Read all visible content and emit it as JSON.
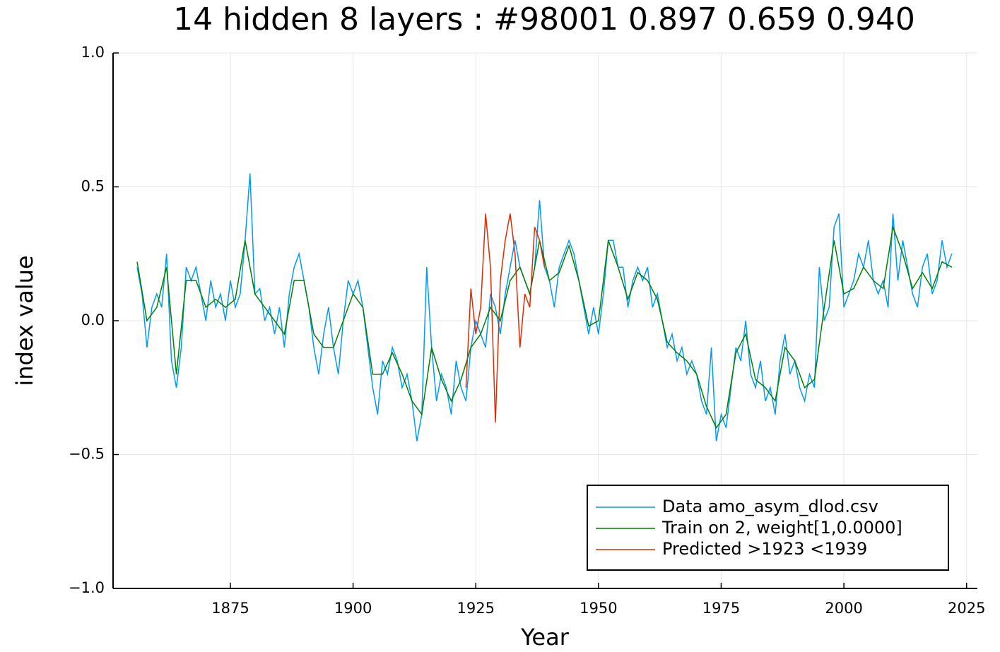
{
  "chart_data": {
    "type": "line",
    "title": "14 hidden 8 layers : #98001 0.897 0.659 0.940",
    "xlabel": "Year",
    "ylabel": "index value",
    "xlim": [
      1851.1,
      2027.2
    ],
    "ylim": [
      -1,
      1
    ],
    "xticks": [
      1875,
      1900,
      1925,
      1950,
      1975,
      2000,
      2025
    ],
    "yticks": [
      {
        "value": -1,
        "label": "−1.0"
      },
      {
        "value": -0.5,
        "label": "−0.5"
      },
      {
        "value": 0,
        "label": "0.0"
      },
      {
        "value": 0.5,
        "label": "0.5"
      },
      {
        "value": 1,
        "label": "1.0"
      }
    ],
    "grid": true,
    "legend": "bottom-right",
    "series": [
      {
        "name": "Data amo_asym_dlod.csv",
        "color": "#009af9",
        "x": [
          1856,
          1857,
          1858,
          1859,
          1860,
          1861,
          1862,
          1863,
          1864,
          1865,
          1866,
          1867,
          1868,
          1869,
          1870,
          1871,
          1872,
          1873,
          1874,
          1875,
          1876,
          1877,
          1878,
          1879,
          1880,
          1881,
          1882,
          1883,
          1884,
          1885,
          1886,
          1887,
          1888,
          1889,
          1890,
          1891,
          1892,
          1893,
          1894,
          1895,
          1896,
          1897,
          1898,
          1899,
          1900,
          1901,
          1902,
          1903,
          1904,
          1905,
          1906,
          1907,
          1908,
          1909,
          1910,
          1911,
          1912,
          1913,
          1914,
          1915,
          1916,
          1917,
          1918,
          1919,
          1920,
          1921,
          1922,
          1923,
          1924,
          1925,
          1926,
          1927,
          1928,
          1929,
          1930,
          1931,
          1932,
          1933,
          1934,
          1935,
          1936,
          1937,
          1938,
          1939,
          1940,
          1941,
          1942,
          1943,
          1944,
          1945,
          1946,
          1947,
          1948,
          1949,
          1950,
          1951,
          1952,
          1953,
          1954,
          1955,
          1956,
          1957,
          1958,
          1959,
          1960,
          1961,
          1962,
          1963,
          1964,
          1965,
          1966,
          1967,
          1968,
          1969,
          1970,
          1971,
          1972,
          1973,
          1974,
          1975,
          1976,
          1977,
          1978,
          1979,
          1980,
          1981,
          1982,
          1983,
          1984,
          1985,
          1986,
          1987,
          1988,
          1989,
          1990,
          1991,
          1992,
          1993,
          1994,
          1995,
          1996,
          1997,
          1998,
          1999,
          2000,
          2001,
          2002,
          2003,
          2004,
          2005,
          2006,
          2007,
          2008,
          2009,
          2010,
          2011,
          2012,
          2013,
          2014,
          2015,
          2016,
          2017,
          2018,
          2019,
          2020,
          2021,
          2022
        ],
        "values": [
          0.2,
          0.1,
          -0.1,
          0.05,
          0.1,
          0.05,
          0.25,
          -0.15,
          -0.25,
          -0.1,
          0.2,
          0.15,
          0.2,
          0.1,
          0.0,
          0.15,
          0.05,
          0.1,
          0.0,
          0.15,
          0.05,
          0.1,
          0.3,
          0.55,
          0.1,
          0.12,
          0.0,
          0.05,
          -0.05,
          0.05,
          -0.1,
          0.1,
          0.2,
          0.25,
          0.15,
          0.05,
          -0.1,
          -0.2,
          -0.05,
          0.05,
          -0.1,
          -0.2,
          0.0,
          0.15,
          0.1,
          0.15,
          0.05,
          -0.1,
          -0.25,
          -0.35,
          -0.15,
          -0.2,
          -0.1,
          -0.15,
          -0.25,
          -0.2,
          -0.3,
          -0.45,
          -0.35,
          0.2,
          -0.1,
          -0.3,
          -0.2,
          -0.25,
          -0.35,
          -0.15,
          -0.25,
          -0.3,
          -0.1,
          0.0,
          -0.05,
          -0.1,
          0.1,
          0.05,
          -0.05,
          0.1,
          0.2,
          0.3,
          0.2,
          0.15,
          0.1,
          0.2,
          0.45,
          0.2,
          0.15,
          0.05,
          0.2,
          0.25,
          0.3,
          0.25,
          0.15,
          0.05,
          -0.05,
          0.05,
          -0.05,
          0.1,
          0.3,
          0.3,
          0.2,
          0.2,
          0.05,
          0.15,
          0.2,
          0.15,
          0.2,
          0.05,
          0.1,
          0.0,
          -0.1,
          -0.05,
          -0.15,
          -0.1,
          -0.2,
          -0.15,
          -0.2,
          -0.3,
          -0.35,
          -0.1,
          -0.45,
          -0.35,
          -0.4,
          -0.25,
          -0.1,
          -0.15,
          0.0,
          -0.2,
          -0.25,
          -0.15,
          -0.3,
          -0.25,
          -0.35,
          -0.15,
          -0.05,
          -0.2,
          -0.15,
          -0.25,
          -0.3,
          -0.2,
          -0.25,
          0.2,
          0.0,
          0.05,
          0.35,
          0.4,
          0.05,
          0.1,
          0.15,
          0.25,
          0.2,
          0.3,
          0.15,
          0.1,
          0.15,
          0.05,
          0.4,
          0.15,
          0.3,
          0.2,
          0.1,
          0.05,
          0.2,
          0.25,
          0.1,
          0.15,
          0.3,
          0.2,
          0.25
        ]
      },
      {
        "name": "Train on 2, weight[1,0.0000]",
        "color": "#008000",
        "x": [
          1856,
          1858,
          1860,
          1862,
          1864,
          1866,
          1868,
          1870,
          1872,
          1874,
          1876,
          1878,
          1880,
          1882,
          1884,
          1886,
          1888,
          1890,
          1892,
          1894,
          1896,
          1898,
          1900,
          1902,
          1904,
          1906,
          1908,
          1910,
          1912,
          1914,
          1916,
          1918,
          1920,
          1922,
          1924,
          1926,
          1928,
          1930,
          1932,
          1934,
          1936,
          1938,
          1940,
          1942,
          1944,
          1946,
          1948,
          1950,
          1952,
          1954,
          1956,
          1958,
          1960,
          1962,
          1964,
          1966,
          1968,
          1970,
          1972,
          1974,
          1976,
          1978,
          1980,
          1982,
          1984,
          1986,
          1988,
          1990,
          1992,
          1994,
          1996,
          1998,
          2000,
          2002,
          2004,
          2006,
          2008,
          2010,
          2012,
          2014,
          2016,
          2018,
          2020,
          2022
        ],
        "values": [
          0.22,
          0.0,
          0.05,
          0.2,
          -0.2,
          0.15,
          0.15,
          0.05,
          0.08,
          0.05,
          0.08,
          0.3,
          0.1,
          0.05,
          0.0,
          -0.05,
          0.15,
          0.15,
          -0.05,
          -0.1,
          -0.1,
          0.0,
          0.1,
          0.05,
          -0.2,
          -0.2,
          -0.12,
          -0.2,
          -0.3,
          -0.35,
          -0.1,
          -0.22,
          -0.3,
          -0.22,
          -0.1,
          -0.05,
          0.05,
          0.0,
          0.15,
          0.2,
          0.1,
          0.3,
          0.15,
          0.18,
          0.28,
          0.15,
          -0.02,
          0.0,
          0.3,
          0.2,
          0.08,
          0.18,
          0.15,
          0.08,
          -0.08,
          -0.12,
          -0.15,
          -0.2,
          -0.32,
          -0.4,
          -0.35,
          -0.12,
          -0.05,
          -0.22,
          -0.25,
          -0.3,
          -0.1,
          -0.15,
          -0.25,
          -0.22,
          0.05,
          0.3,
          0.1,
          0.12,
          0.2,
          0.15,
          0.12,
          0.35,
          0.25,
          0.12,
          0.18,
          0.12,
          0.22,
          0.2
        ]
      },
      {
        "name": "Predicted >1923 <1939",
        "color": "#e02a00",
        "x": [
          1923,
          1924,
          1925,
          1926,
          1927,
          1928,
          1929,
          1930,
          1931,
          1932,
          1933,
          1934,
          1935,
          1936,
          1937,
          1938,
          1939
        ],
        "values": [
          -0.25,
          0.12,
          -0.05,
          0.05,
          0.4,
          0.2,
          -0.38,
          0.15,
          0.3,
          0.4,
          0.25,
          -0.1,
          0.1,
          0.05,
          0.35,
          0.3,
          0.2
        ]
      }
    ]
  }
}
